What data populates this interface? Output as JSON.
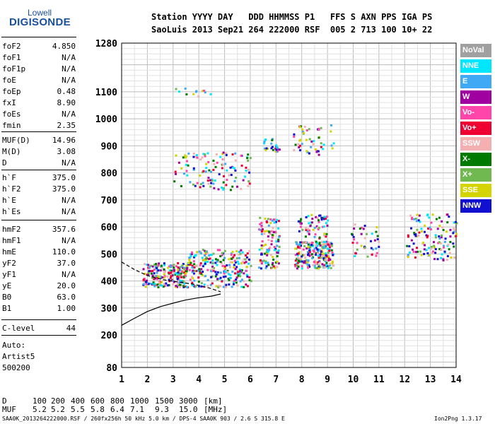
{
  "logo": {
    "top": "Lowell",
    "bottom": "DIGISONDE"
  },
  "header": {
    "line1": "Station YYYY DAY   DDD HHMMSS P1   FFS S AXN PPS IGA PS",
    "line2": "SaoLuis 2013 Sep21 264 222000 RSF  005 2 713 100 10+ 22"
  },
  "scaled_params": [
    {
      "key": "foF2",
      "value": "4.850"
    },
    {
      "key": "foF1",
      "value": "N/A"
    },
    {
      "key": "foF1p",
      "value": "N/A"
    },
    {
      "key": "foE",
      "value": "N/A"
    },
    {
      "key": "foEp",
      "value": "0.48"
    },
    {
      "key": "fxI",
      "value": "8.90"
    },
    {
      "key": "foEs",
      "value": "N/A"
    },
    {
      "key": "fmin",
      "value": "2.35"
    },
    {
      "key": "MUF(D)",
      "value": "14.96"
    },
    {
      "key": "M(D)",
      "value": "3.08"
    },
    {
      "key": "D",
      "value": "N/A"
    },
    {
      "key": "h`F",
      "value": "375.0"
    },
    {
      "key": "h`F2",
      "value": "375.0"
    },
    {
      "key": "h`E",
      "value": "N/A"
    },
    {
      "key": "h`Es",
      "value": "N/A"
    },
    {
      "key": "hmF2",
      "value": "357.6"
    },
    {
      "key": "hmF1",
      "value": "N/A"
    },
    {
      "key": "hmE",
      "value": "110.0"
    },
    {
      "key": "yF2",
      "value": "37.0"
    },
    {
      "key": "yF1",
      "value": "N/A"
    },
    {
      "key": "yE",
      "value": "20.0"
    },
    {
      "key": "B0",
      "value": "63.0"
    },
    {
      "key": "B1",
      "value": "1.00"
    },
    {
      "key": "C-level",
      "value": "44"
    }
  ],
  "autoscaling": {
    "label": "Auto:",
    "name": "Artist5",
    "version": "500200"
  },
  "legend": [
    {
      "label": "NoVal",
      "color": "#a0a0a0"
    },
    {
      "label": "NNE",
      "color": "#00e6ff"
    },
    {
      "label": "E",
      "color": "#3fa9f5"
    },
    {
      "label": "W",
      "color": "#a000a0"
    },
    {
      "label": "Vo-",
      "color": "#ff44aa"
    },
    {
      "label": "Vo+",
      "color": "#ee0033"
    },
    {
      "label": "SSW",
      "color": "#f4b0b0"
    },
    {
      "label": "X-",
      "color": "#007a00"
    },
    {
      "label": "X+",
      "color": "#70b850"
    },
    {
      "label": "SSE",
      "color": "#d4d400"
    },
    {
      "label": "NNW",
      "color": "#1010d0"
    }
  ],
  "muf_table": {
    "d_label": "D",
    "d_values": [
      "100",
      "200",
      "400",
      "600",
      "800",
      "1000",
      "1500",
      "3000"
    ],
    "d_unit": "[km]",
    "muf_label": "MUF",
    "muf_values": [
      "5.2",
      "5.2",
      "5.5",
      "5.8",
      "6.4",
      "7.1",
      "9.3",
      "15.0"
    ],
    "muf_unit": "[MHz]"
  },
  "footer": {
    "left": "SAA0K_2013264222000.RSF / 260fx256h 50 kHz 5.0 km / DPS-4 SAA0K 903 / 2.6 S 315.8 E",
    "right": "Ion2Png 1.3.17"
  },
  "chart_data": {
    "type": "scatter",
    "x_ticks": [
      "1",
      "2",
      "3",
      "4",
      "5",
      "6",
      "7",
      "8",
      "9",
      "10",
      "11",
      "12",
      "13",
      "14"
    ],
    "y_ticks": [
      "80",
      "200",
      "300",
      "400",
      "500",
      "600",
      "700",
      "800",
      "900",
      "1000",
      "1100",
      "1280"
    ],
    "xlim": [
      1,
      14
    ],
    "ylim": [
      80,
      1280
    ],
    "grid": true,
    "x_unit": "MHz",
    "y_unit": "km",
    "echo_clusters": [
      {
        "x_range": [
          1.8,
          3.5
        ],
        "h_range": [
          380,
          470
        ],
        "n": 220
      },
      {
        "x_range": [
          3.5,
          6.0
        ],
        "h_range": [
          380,
          520
        ],
        "n": 260
      },
      {
        "x_range": [
          6.3,
          7.1
        ],
        "h_range": [
          450,
          640
        ],
        "n": 110
      },
      {
        "x_range": [
          7.7,
          9.2
        ],
        "h_range": [
          450,
          550
        ],
        "n": 240
      },
      {
        "x_range": [
          7.8,
          9.0
        ],
        "h_range": [
          560,
          650
        ],
        "n": 60
      },
      {
        "x_range": [
          3.0,
          6.0
        ],
        "h_range": [
          740,
          880
        ],
        "n": 120
      },
      {
        "x_range": [
          6.5,
          7.1
        ],
        "h_range": [
          880,
          930
        ],
        "n": 25
      },
      {
        "x_range": [
          7.6,
          9.3
        ],
        "h_range": [
          870,
          980
        ],
        "n": 50
      },
      {
        "x_range": [
          9.9,
          11.0
        ],
        "h_range": [
          490,
          620
        ],
        "n": 40
      },
      {
        "x_range": [
          12.0,
          14.0
        ],
        "h_range": [
          480,
          650
        ],
        "n": 130
      },
      {
        "x_range": [
          3.0,
          4.5
        ],
        "h_range": [
          1080,
          1120
        ],
        "n": 12
      }
    ],
    "virtual_height_trace": [
      [
        1.0,
        236
      ],
      [
        1.5,
        262
      ],
      [
        2.0,
        287
      ],
      [
        2.5,
        305
      ],
      [
        3.0,
        318
      ],
      [
        3.5,
        330
      ],
      [
        4.0,
        338
      ],
      [
        4.5,
        344
      ],
      [
        4.85,
        352
      ]
    ],
    "x_trace": [
      [
        1.0,
        470
      ],
      [
        1.5,
        442
      ],
      [
        2.0,
        420
      ],
      [
        2.6,
        405
      ],
      [
        3.2,
        396
      ],
      [
        3.8,
        388
      ],
      [
        4.4,
        374
      ],
      [
        4.85,
        360
      ]
    ]
  }
}
